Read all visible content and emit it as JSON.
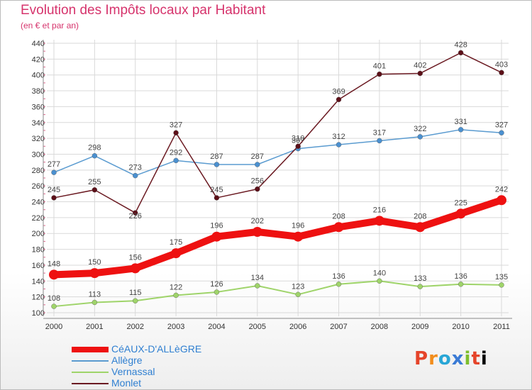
{
  "title": "Evolution des Impôts locaux par Habitant",
  "subtitle": "(en € et par an)",
  "logo": "Proxiti",
  "chart_data": {
    "type": "line",
    "x": [
      "2000",
      "2001",
      "2002",
      "2003",
      "2004",
      "2005",
      "2006",
      "2007",
      "2008",
      "2009",
      "2010",
      "2011"
    ],
    "ylim": [
      100,
      440
    ],
    "yticks": [
      100,
      120,
      140,
      160,
      180,
      200,
      220,
      240,
      260,
      280,
      300,
      320,
      340,
      360,
      380,
      400,
      420,
      440
    ],
    "grid": true,
    "legend_position": "bottom-left",
    "series": [
      {
        "name": "CéAUX-D'ALLèGRE",
        "color": "#ee1111",
        "values": [
          148,
          150,
          156,
          175,
          196,
          202,
          196,
          208,
          216,
          208,
          225,
          242
        ]
      },
      {
        "name": "Allègre",
        "color": "#5a9bd0",
        "values": [
          277,
          298,
          273,
          292,
          287,
          287,
          307,
          312,
          317,
          322,
          331,
          327
        ]
      },
      {
        "name": "Vernassal",
        "color": "#9fd46a",
        "values": [
          108,
          113,
          115,
          122,
          126,
          134,
          123,
          136,
          140,
          133,
          136,
          135
        ]
      },
      {
        "name": "Monlet",
        "color": "#6b1a22",
        "values": [
          245,
          255,
          226,
          327,
          245,
          256,
          310,
          369,
          401,
          402,
          428,
          403
        ]
      }
    ]
  }
}
